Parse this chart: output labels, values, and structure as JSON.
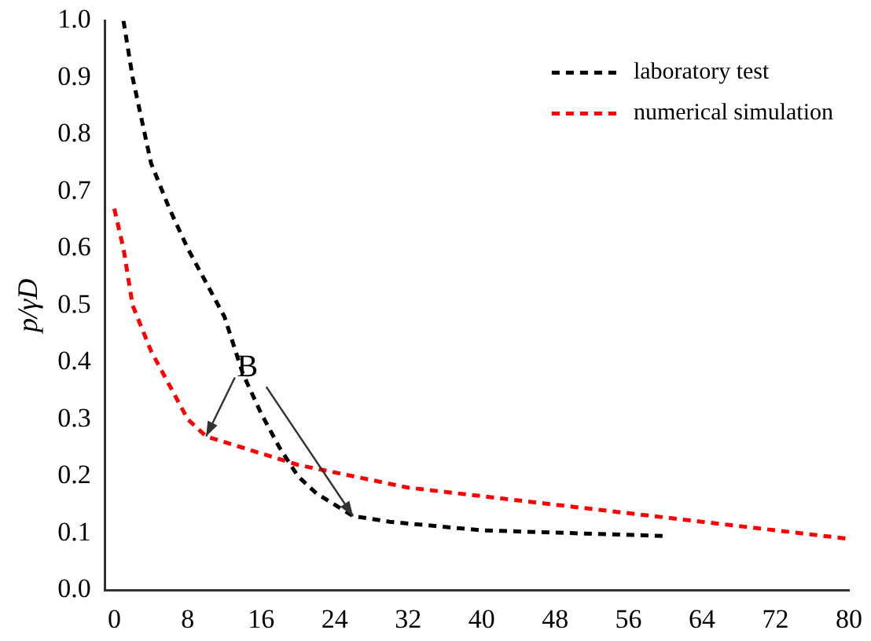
{
  "chart_data": {
    "type": "line",
    "ylabel": "p/γD",
    "xlim": [
      -1,
      80
    ],
    "xticks": [
      0,
      8,
      16,
      24,
      32,
      40,
      48,
      56,
      64,
      72,
      80
    ],
    "ylim": [
      0,
      1
    ],
    "yticks": [
      {
        "value": 0,
        "label": "0.0"
      },
      0.1,
      0.2,
      0.3,
      0.4,
      0.5,
      0.6,
      0.7,
      0.8,
      0.9,
      {
        "value": 1,
        "label": "1.0"
      }
    ],
    "grid": false,
    "legend": "top right",
    "line_style": "dashed",
    "marker": "none",
    "series": [
      {
        "name": "laboratory test",
        "color": "#000000",
        "x": [
          1,
          2,
          4,
          6,
          8,
          10,
          12,
          14,
          16,
          18,
          20,
          22,
          24,
          26,
          30,
          40,
          50,
          60
        ],
        "values": [
          1.0,
          0.9,
          0.75,
          0.67,
          0.6,
          0.54,
          0.48,
          0.38,
          0.31,
          0.25,
          0.2,
          0.17,
          0.15,
          0.13,
          0.12,
          0.105,
          0.1,
          0.095
        ]
      },
      {
        "name": "numerical simulation",
        "color": "#ff0000",
        "x": [
          0,
          1,
          2,
          4,
          6,
          8,
          10,
          16,
          20,
          26,
          32,
          40,
          48,
          56,
          64,
          72,
          80
        ],
        "values": [
          0.67,
          0.6,
          0.5,
          0.42,
          0.36,
          0.3,
          0.27,
          0.24,
          0.22,
          0.2,
          0.18,
          0.165,
          0.15,
          0.135,
          0.12,
          0.105,
          0.09
        ]
      }
    ],
    "annotations": [
      {
        "text": "B",
        "x": 14.5,
        "y": 0.39
      }
    ]
  }
}
